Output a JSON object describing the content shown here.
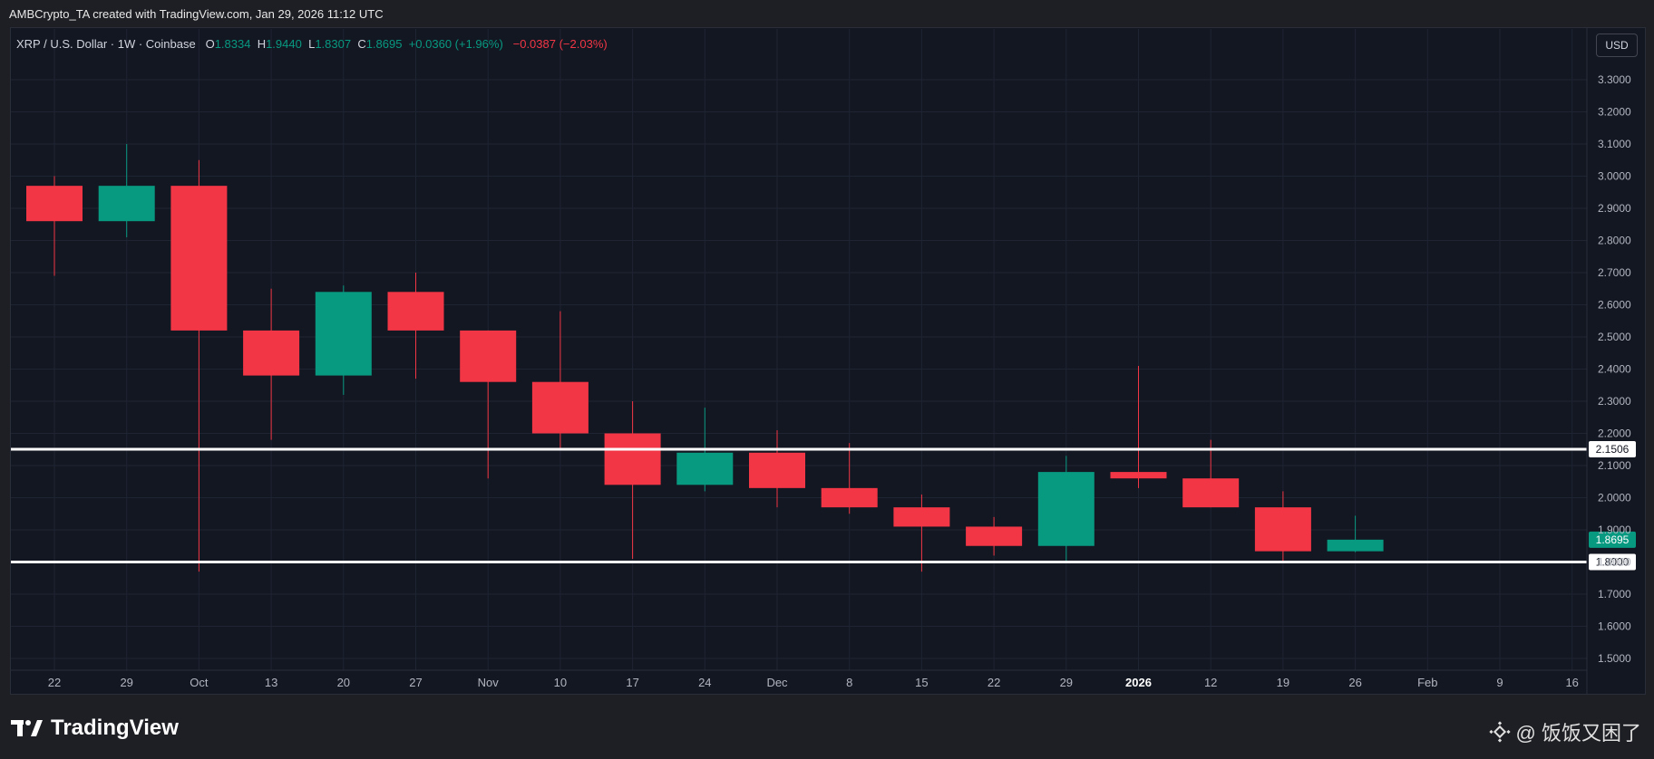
{
  "header": {
    "created_text": "AMBCrypto_TA created with TradingView.com, Jan 29, 2026 11:12 UTC"
  },
  "symbol": {
    "name": "XRP / U.S. Dollar · 1W · Coinbase",
    "o_label": "O",
    "o_value": "1.8334",
    "h_label": "H",
    "h_value": "1.9440",
    "l_label": "L",
    "l_value": "1.8307",
    "c_label": "C",
    "c_value": "1.8695",
    "change": "+0.0360 (+1.96%)",
    "change2": "−0.0387 (−2.03%)"
  },
  "currency_button": "USD",
  "colors": {
    "up": "#089981",
    "down": "#f23645",
    "grid": "#1f2433",
    "axis_text": "#b2b5be",
    "level_line": "#ffffff"
  },
  "footer": {
    "logo_text": "TradingView",
    "watermark_text": "@ 饭饭又困了"
  },
  "chart_data": {
    "type": "candlestick",
    "title": "",
    "ylim": [
      1.45,
      3.38
    ],
    "yticks": [
      "3.3000",
      "3.2000",
      "3.1000",
      "3.0000",
      "2.9000",
      "2.8000",
      "2.7000",
      "2.6000",
      "2.5000",
      "2.4000",
      "2.3000",
      "2.2000",
      "2.1000",
      "2.0000",
      "1.9000",
      "1.8000",
      "1.7000",
      "1.6000",
      "1.5000"
    ],
    "ytick_values": [
      3.3,
      3.2,
      3.1,
      3.0,
      2.9,
      2.8,
      2.7,
      2.6,
      2.5,
      2.4,
      2.3,
      2.2,
      2.1,
      2.0,
      1.9,
      1.8,
      1.7,
      1.6,
      1.5
    ],
    "x_labels": [
      "22",
      "29",
      "Oct",
      "13",
      "20",
      "27",
      "Nov",
      "10",
      "17",
      "24",
      "Dec",
      "8",
      "15",
      "22",
      "29",
      "2026",
      "12",
      "19",
      "26",
      "Feb",
      "9",
      "16"
    ],
    "candles": [
      {
        "o": 2.97,
        "h": 3.0,
        "l": 2.69,
        "c": 2.86
      },
      {
        "o": 2.86,
        "h": 3.1,
        "l": 2.81,
        "c": 2.97
      },
      {
        "o": 2.97,
        "h": 3.05,
        "l": 1.77,
        "c": 2.52
      },
      {
        "o": 2.52,
        "h": 2.65,
        "l": 2.18,
        "c": 2.38
      },
      {
        "o": 2.38,
        "h": 2.66,
        "l": 2.32,
        "c": 2.64
      },
      {
        "o": 2.64,
        "h": 2.7,
        "l": 2.37,
        "c": 2.52
      },
      {
        "o": 2.52,
        "h": 2.52,
        "l": 2.06,
        "c": 2.36
      },
      {
        "o": 2.36,
        "h": 2.58,
        "l": 2.15,
        "c": 2.2
      },
      {
        "o": 2.2,
        "h": 2.3,
        "l": 1.81,
        "c": 2.04
      },
      {
        "o": 2.04,
        "h": 2.28,
        "l": 2.02,
        "c": 2.14
      },
      {
        "o": 2.14,
        "h": 2.21,
        "l": 1.97,
        "c": 2.03
      },
      {
        "o": 2.03,
        "h": 2.17,
        "l": 1.95,
        "c": 1.97
      },
      {
        "o": 1.97,
        "h": 2.01,
        "l": 1.77,
        "c": 1.91
      },
      {
        "o": 1.91,
        "h": 1.94,
        "l": 1.82,
        "c": 1.85
      },
      {
        "o": 1.85,
        "h": 2.13,
        "l": 1.8,
        "c": 2.08
      },
      {
        "o": 2.08,
        "h": 2.41,
        "l": 2.03,
        "c": 2.06
      },
      {
        "o": 2.06,
        "h": 2.18,
        "l": 1.97,
        "c": 1.97
      },
      {
        "o": 1.97,
        "h": 2.02,
        "l": 1.8,
        "c": 1.8334
      },
      {
        "o": 1.8334,
        "h": 1.944,
        "l": 1.8307,
        "c": 1.8695
      }
    ],
    "levels": [
      {
        "value": 2.1506,
        "label": "2.1506"
      },
      {
        "value": 1.8,
        "label": "1.8000"
      }
    ],
    "last_price": {
      "value": 1.8695,
      "label": "1.8695"
    },
    "grid": true
  }
}
